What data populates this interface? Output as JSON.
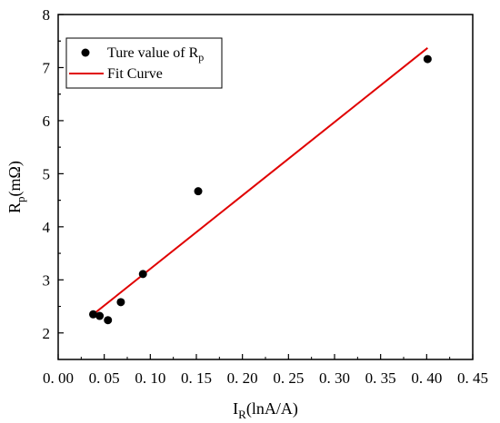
{
  "chart_data": {
    "type": "scatter",
    "title": "",
    "xlabel": {
      "main": "I",
      "sub": "R",
      "rest": "(lnA/A)"
    },
    "ylabel": {
      "main": "R",
      "sub": "p",
      "rest": "(mΩ)"
    },
    "xlim": [
      0.0,
      0.45
    ],
    "ylim": [
      1.5,
      8.0
    ],
    "xticks": [
      0.0,
      0.05,
      0.1,
      0.15,
      0.2,
      0.25,
      0.3,
      0.35,
      0.4,
      0.45
    ],
    "xtick_labels": [
      "0. 00",
      "0. 05",
      "0. 10",
      "0. 15",
      "0. 20",
      "0. 25",
      "0. 30",
      "0. 35",
      "0. 40",
      "0. 45"
    ],
    "yticks": [
      2,
      3,
      4,
      5,
      6,
      7,
      8
    ],
    "ytick_labels": [
      "2",
      "3",
      "4",
      "5",
      "6",
      "7",
      "8"
    ],
    "grid": false,
    "legend_position": "top-left",
    "series": [
      {
        "name": "Ture value of R",
        "name_sub": "p",
        "kind": "scatter",
        "color": "#000000",
        "points": [
          {
            "x": 0.038,
            "y": 2.35
          },
          {
            "x": 0.045,
            "y": 2.32
          },
          {
            "x": 0.054,
            "y": 2.24
          },
          {
            "x": 0.068,
            "y": 2.58
          },
          {
            "x": 0.092,
            "y": 3.11
          },
          {
            "x": 0.152,
            "y": 4.67
          },
          {
            "x": 0.401,
            "y": 7.16
          }
        ]
      },
      {
        "name": "Fit Curve",
        "kind": "line",
        "color": "#e00000",
        "points": [
          {
            "x": 0.038,
            "y": 2.35
          },
          {
            "x": 0.401,
            "y": 7.37
          }
        ]
      }
    ]
  }
}
